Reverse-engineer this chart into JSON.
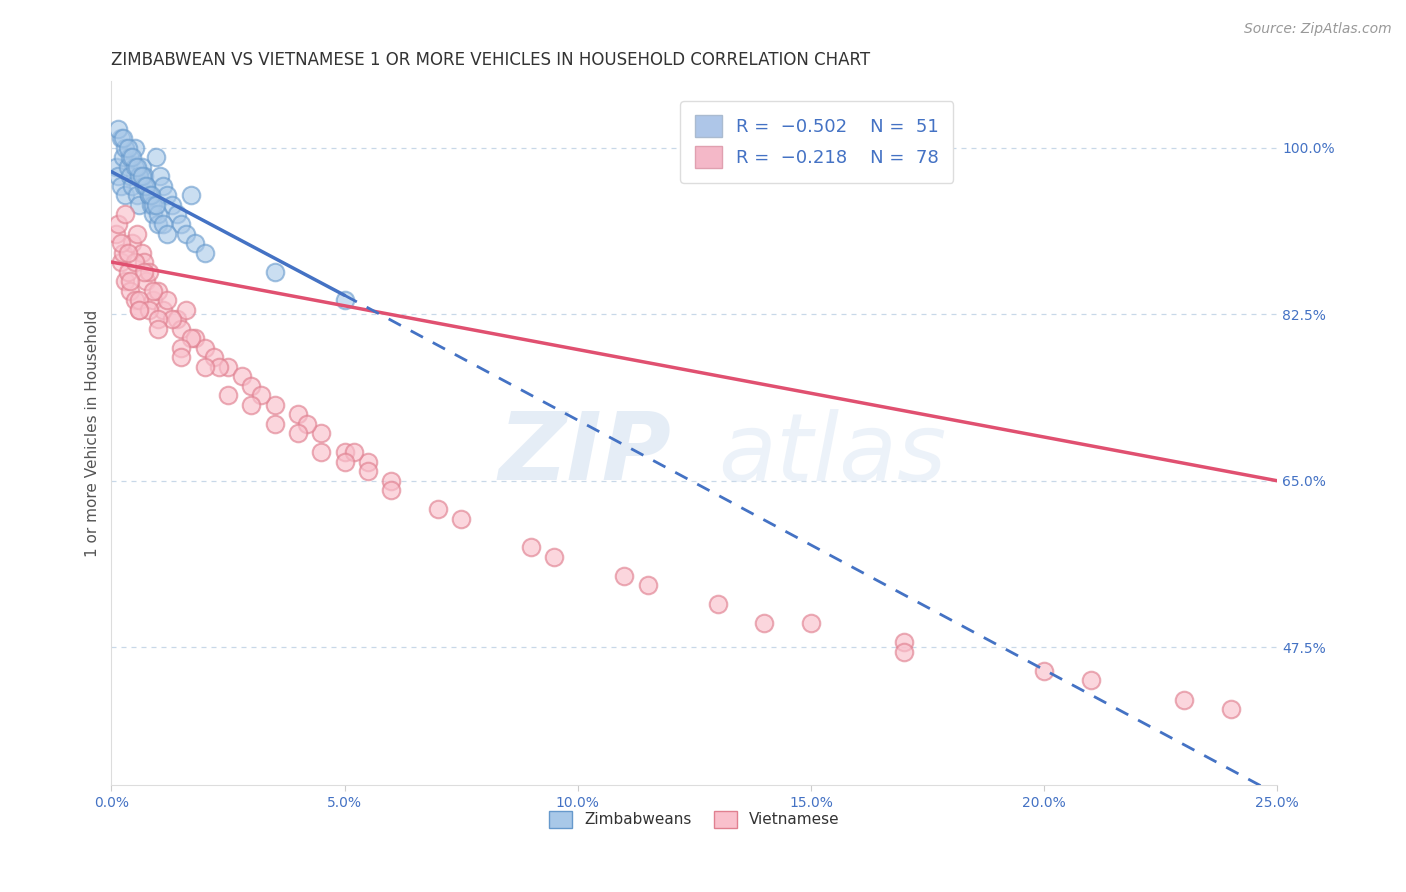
{
  "title": "ZIMBABWEAN VS VIETNAMESE 1 OR MORE VEHICLES IN HOUSEHOLD CORRELATION CHART",
  "source": "Source: ZipAtlas.com",
  "ylabel": "1 or more Vehicles in Household",
  "xmin": 0.0,
  "xmax": 25.0,
  "ymin": 33.0,
  "ymax": 107.0,
  "right_yticks": [
    47.5,
    65.0,
    82.5,
    100.0
  ],
  "watermark_zip": "ZIP",
  "watermark_atlas": "atlas",
  "zimbabwean_face": "#a8c8e8",
  "zimbabwean_edge": "#6699cc",
  "vietnamese_face": "#f9c0cc",
  "vietnamese_edge": "#e08090",
  "trend_zim_color": "#4472c4",
  "trend_viet_color": "#e05070",
  "legend_zim_fill": "#aec6e8",
  "legend_viet_fill": "#f4b8c8",
  "zim_scatter_x": [
    0.1,
    0.15,
    0.2,
    0.25,
    0.3,
    0.35,
    0.4,
    0.45,
    0.5,
    0.55,
    0.6,
    0.65,
    0.7,
    0.75,
    0.8,
    0.85,
    0.9,
    0.95,
    1.0,
    1.05,
    1.1,
    1.2,
    1.3,
    1.4,
    1.5,
    1.6,
    1.7,
    1.8,
    0.2,
    0.3,
    0.4,
    0.5,
    0.6,
    0.7,
    0.8,
    0.9,
    1.0,
    1.1,
    1.2,
    0.15,
    0.25,
    0.35,
    0.45,
    0.55,
    0.65,
    0.75,
    0.85,
    0.95,
    2.0,
    3.5,
    5.0
  ],
  "zim_scatter_y": [
    98,
    97,
    96,
    99,
    95,
    98,
    97,
    96,
    100,
    95,
    94,
    98,
    97,
    96,
    95,
    94,
    93,
    99,
    92,
    97,
    96,
    95,
    94,
    93,
    92,
    91,
    95,
    90,
    101,
    100,
    99,
    98,
    97,
    96,
    95,
    94,
    93,
    92,
    91,
    102,
    101,
    100,
    99,
    98,
    97,
    96,
    95,
    94,
    89,
    87,
    84
  ],
  "viet_scatter_x": [
    0.1,
    0.15,
    0.2,
    0.25,
    0.3,
    0.35,
    0.4,
    0.45,
    0.5,
    0.55,
    0.6,
    0.65,
    0.7,
    0.75,
    0.8,
    0.9,
    1.0,
    1.1,
    1.2,
    1.4,
    1.5,
    1.6,
    1.8,
    2.0,
    2.2,
    2.5,
    2.8,
    3.0,
    3.5,
    4.0,
    4.5,
    5.0,
    5.5,
    6.0,
    0.3,
    0.5,
    0.7,
    0.9,
    1.3,
    1.7,
    2.3,
    3.2,
    4.2,
    5.2,
    0.2,
    0.4,
    0.6,
    0.8,
    1.0,
    1.5,
    2.0,
    3.0,
    4.0,
    5.0,
    6.0,
    7.0,
    9.0,
    11.0,
    13.0,
    15.0,
    17.0,
    20.0,
    23.0,
    0.35,
    0.6,
    1.0,
    1.5,
    2.5,
    3.5,
    4.5,
    5.5,
    7.5,
    9.5,
    11.5,
    14.0,
    17.0,
    21.0,
    24.0
  ],
  "viet_scatter_y": [
    91,
    92,
    88,
    89,
    86,
    87,
    85,
    90,
    84,
    91,
    83,
    89,
    88,
    86,
    87,
    84,
    85,
    83,
    84,
    82,
    81,
    83,
    80,
    79,
    78,
    77,
    76,
    75,
    73,
    72,
    70,
    68,
    67,
    65,
    93,
    88,
    87,
    85,
    82,
    80,
    77,
    74,
    71,
    68,
    90,
    86,
    84,
    83,
    82,
    79,
    77,
    73,
    70,
    67,
    64,
    62,
    58,
    55,
    52,
    50,
    48,
    45,
    42,
    89,
    83,
    81,
    78,
    74,
    71,
    68,
    66,
    61,
    57,
    54,
    50,
    47,
    44,
    41
  ],
  "zim_trend": {
    "x": [
      0.0,
      5.0
    ],
    "y": [
      97.5,
      84.5
    ]
  },
  "viet_trend": {
    "x": [
      0.0,
      25.0
    ],
    "y": [
      88.0,
      65.0
    ]
  },
  "zim_dash": {
    "x": [
      5.0,
      25.0
    ],
    "y": [
      84.5,
      32.0
    ]
  },
  "background_color": "#ffffff",
  "grid_color": "#c8d8e8",
  "title_fontsize": 12,
  "tick_fontsize": 10,
  "axis_label_fontsize": 11
}
